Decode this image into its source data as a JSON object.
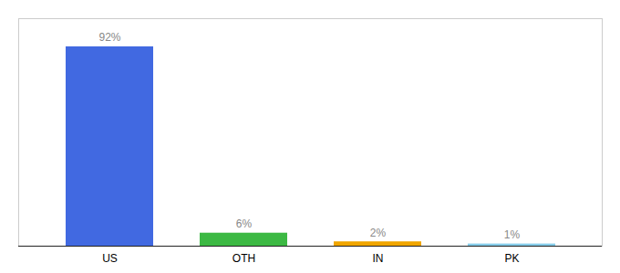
{
  "chart_data": {
    "type": "bar",
    "categories": [
      "US",
      "OTH",
      "IN",
      "PK"
    ],
    "values": [
      92,
      6,
      2,
      1
    ],
    "value_labels": [
      "92%",
      "6%",
      "2%",
      "1%"
    ],
    "colors": [
      "#4169e1",
      "#3cb943",
      "#f0a500",
      "#87ceeb"
    ],
    "ylim": [
      0,
      105
    ],
    "data_labels": true,
    "tick_labels": "x"
  }
}
